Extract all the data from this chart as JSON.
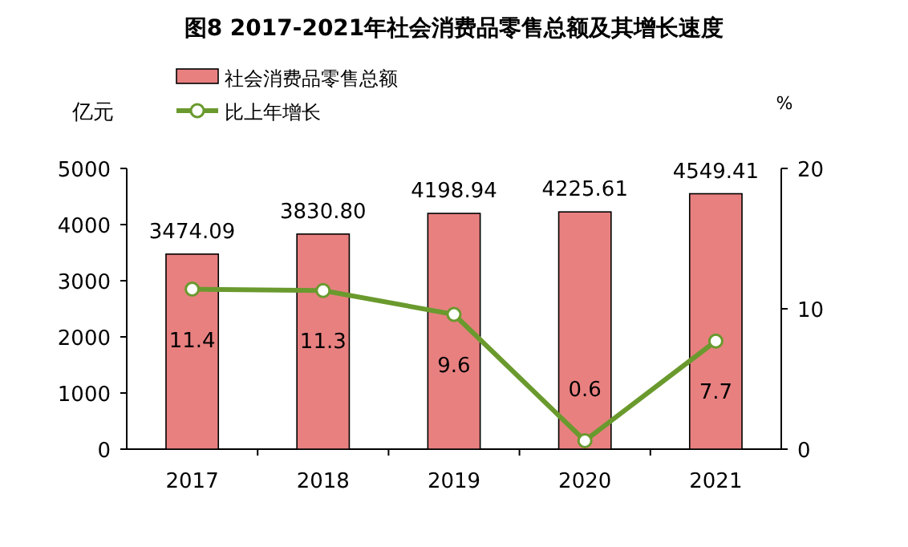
{
  "chart_data": {
    "type": "bar",
    "title": "图8  2017-2021年社会消费品零售总额及其增长速度",
    "categories": [
      "2017",
      "2018",
      "2019",
      "2020",
      "2021"
    ],
    "series": [
      {
        "name": "社会消费品零售总额",
        "color": "#e88080",
        "values": [
          3474.09,
          3830.8,
          4198.94,
          4225.61,
          4549.41
        ],
        "value_labels": [
          "3474.09",
          "3830.80",
          "4198.94",
          "4225.61",
          "4549.41"
        ]
      },
      {
        "name": "比上年增长",
        "type": "line",
        "axis": "y2",
        "color": "#6a9a2e",
        "marker": "circle",
        "values": [
          11.4,
          11.3,
          9.6,
          0.6,
          7.7
        ],
        "value_labels": [
          "11.4",
          "11.3",
          "9.6",
          "0.6",
          "7.7"
        ]
      }
    ],
    "ylabel": "亿元",
    "y2label": "%",
    "ylim": [
      0,
      5000
    ],
    "yticks": [
      0,
      1000,
      2000,
      3000,
      4000,
      5000
    ],
    "y2lim": [
      0,
      20
    ],
    "y2ticks": [
      0,
      10,
      20
    ],
    "legend": "top left",
    "grid": false
  }
}
